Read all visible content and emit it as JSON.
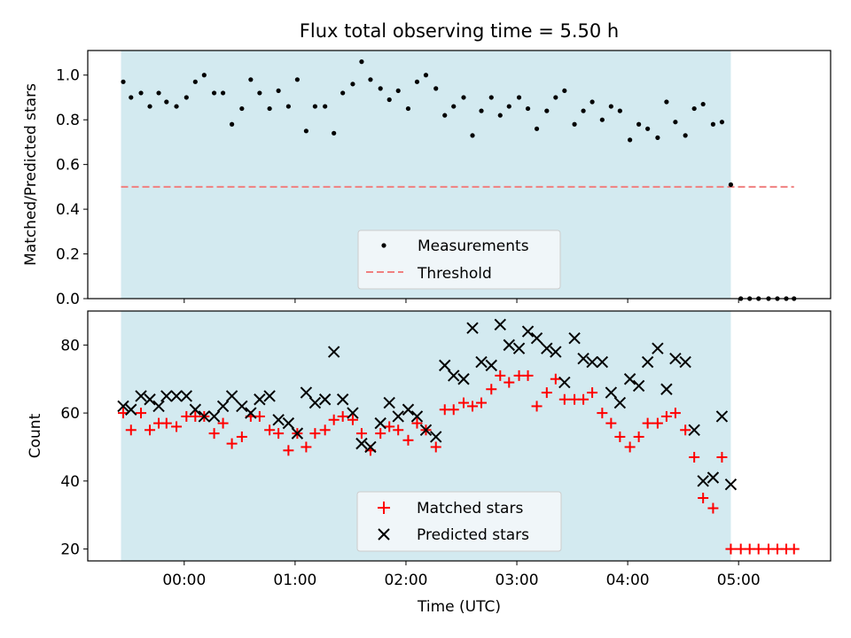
{
  "chart_data": [
    {
      "type": "scatter",
      "title": "Flux total observing time = 5.50 h",
      "xlabel": "",
      "ylabel": "Matched/Predicted stars",
      "xlim": [
        -0.87,
        5.83
      ],
      "ylim": [
        0.0,
        1.11
      ],
      "yticks": [
        "0.0",
        "0.2",
        "0.4",
        "0.6",
        "0.8",
        "1.0"
      ],
      "shaded_region": [
        -0.57,
        4.93
      ],
      "shade_color": "#d3eaf0",
      "threshold": {
        "label": "Threshold",
        "y": 0.5,
        "x_range": [
          -0.57,
          5.5
        ],
        "color": "#f08080"
      },
      "series": [
        {
          "name": "Measurements",
          "marker": "dot",
          "color": "#000000",
          "x": [
            -0.55,
            -0.48,
            -0.39,
            -0.31,
            -0.23,
            -0.16,
            -0.07,
            0.02,
            0.1,
            0.18,
            0.27,
            0.35,
            0.43,
            0.52,
            0.6,
            0.68,
            0.77,
            0.85,
            0.94,
            1.02,
            1.1,
            1.18,
            1.27,
            1.35,
            1.43,
            1.52,
            1.6,
            1.68,
            1.77,
            1.85,
            1.93,
            2.02,
            2.1,
            2.18,
            2.27,
            2.35,
            2.43,
            2.52,
            2.6,
            2.68,
            2.77,
            2.85,
            2.93,
            3.02,
            3.1,
            3.18,
            3.27,
            3.35,
            3.43,
            3.52,
            3.6,
            3.68,
            3.77,
            3.85,
            3.93,
            4.02,
            4.1,
            4.18,
            4.27,
            4.35,
            4.43,
            4.52,
            4.6,
            4.68,
            4.77,
            4.85,
            4.93,
            5.02,
            5.1,
            5.18,
            5.27,
            5.35,
            5.43,
            5.5
          ],
          "y": [
            0.97,
            0.9,
            0.92,
            0.86,
            0.92,
            0.88,
            0.86,
            0.9,
            0.97,
            1.0,
            0.92,
            0.92,
            0.78,
            0.85,
            0.98,
            0.92,
            0.85,
            0.93,
            0.86,
            0.98,
            0.75,
            0.86,
            0.86,
            0.74,
            0.92,
            0.96,
            1.06,
            0.98,
            0.94,
            0.89,
            0.93,
            0.85,
            0.97,
            1.0,
            0.94,
            0.82,
            0.86,
            0.9,
            0.73,
            0.84,
            0.9,
            0.82,
            0.86,
            0.9,
            0.85,
            0.76,
            0.84,
            0.9,
            0.93,
            0.78,
            0.84,
            0.88,
            0.8,
            0.86,
            0.84,
            0.71,
            0.78,
            0.76,
            0.72,
            0.88,
            0.79,
            0.73,
            0.85,
            0.87,
            0.78,
            0.79,
            0.51,
            0.0,
            0.0,
            0.0,
            0.0,
            0.0,
            0.0,
            0.0
          ]
        }
      ],
      "legend": {
        "position": "lower-center",
        "entries": [
          "Measurements",
          "Threshold"
        ]
      }
    },
    {
      "type": "scatter",
      "title": "",
      "xlabel": "Time (UTC)",
      "ylabel": "Count",
      "xlim": [
        -0.87,
        5.83
      ],
      "ylim": [
        16.5,
        90
      ],
      "xticks": [
        "00:00",
        "01:00",
        "02:00",
        "03:00",
        "04:00",
        "05:00"
      ],
      "xtick_values": [
        0,
        1,
        2,
        3,
        4,
        5
      ],
      "yticks": [
        "20",
        "40",
        "60",
        "80"
      ],
      "ytick_values": [
        20,
        40,
        60,
        80
      ],
      "shaded_region": [
        -0.57,
        4.93
      ],
      "shade_color": "#d3eaf0",
      "series": [
        {
          "name": "Matched stars",
          "marker": "plus",
          "color": "#ff0000",
          "x": [
            -0.55,
            -0.48,
            -0.39,
            -0.31,
            -0.23,
            -0.16,
            -0.07,
            0.02,
            0.1,
            0.18,
            0.27,
            0.35,
            0.43,
            0.52,
            0.6,
            0.68,
            0.77,
            0.85,
            0.94,
            1.02,
            1.1,
            1.18,
            1.27,
            1.35,
            1.43,
            1.52,
            1.6,
            1.68,
            1.77,
            1.85,
            1.93,
            2.02,
            2.1,
            2.18,
            2.27,
            2.35,
            2.43,
            2.52,
            2.6,
            2.68,
            2.77,
            2.85,
            2.93,
            3.02,
            3.1,
            3.18,
            3.27,
            3.35,
            3.43,
            3.52,
            3.6,
            3.68,
            3.77,
            3.85,
            3.93,
            4.02,
            4.1,
            4.18,
            4.27,
            4.35,
            4.43,
            4.52,
            4.6,
            4.68,
            4.77,
            4.85,
            4.93,
            5.02,
            5.1,
            5.18,
            5.27,
            5.35,
            5.43,
            5.5
          ],
          "y": [
            60,
            55,
            60,
            55,
            57,
            57,
            56,
            59,
            59,
            59,
            54,
            57,
            51,
            53,
            59,
            59,
            55,
            54,
            49,
            54,
            50,
            54,
            55,
            58,
            59,
            58,
            54,
            49,
            54,
            56,
            55,
            52,
            57,
            55,
            50,
            61,
            61,
            63,
            62,
            63,
            67,
            71,
            69,
            71,
            71,
            62,
            66,
            70,
            64,
            64,
            64,
            66,
            60,
            57,
            53,
            50,
            53,
            57,
            57,
            59,
            60,
            55,
            47,
            35,
            32,
            47,
            20,
            20,
            20,
            20,
            20,
            20,
            20,
            20
          ]
        },
        {
          "name": "Predicted stars",
          "marker": "x",
          "color": "#000000",
          "x": [
            -0.55,
            -0.48,
            -0.39,
            -0.31,
            -0.23,
            -0.16,
            -0.07,
            0.02,
            0.1,
            0.18,
            0.27,
            0.35,
            0.43,
            0.52,
            0.6,
            0.68,
            0.77,
            0.85,
            0.94,
            1.02,
            1.1,
            1.18,
            1.27,
            1.35,
            1.43,
            1.52,
            1.6,
            1.68,
            1.77,
            1.85,
            1.93,
            2.02,
            2.1,
            2.18,
            2.27,
            2.35,
            2.43,
            2.52,
            2.6,
            2.68,
            2.77,
            2.85,
            2.93,
            3.02,
            3.1,
            3.18,
            3.27,
            3.35,
            3.43,
            3.52,
            3.6,
            3.68,
            3.77,
            3.85,
            3.93,
            4.02,
            4.1,
            4.18,
            4.27,
            4.35,
            4.43,
            4.52,
            4.6,
            4.68,
            4.77,
            4.85,
            4.93
          ],
          "y": [
            62,
            61,
            65,
            64,
            62,
            65,
            65,
            65,
            61,
            59,
            59,
            62,
            65,
            62,
            60,
            64,
            65,
            58,
            57,
            54,
            66,
            63,
            64,
            78,
            64,
            60,
            51,
            50,
            57,
            63,
            59,
            61,
            59,
            55,
            53,
            74,
            71,
            70,
            85,
            75,
            74,
            86,
            80,
            79,
            84,
            82,
            79,
            78,
            69,
            82,
            76,
            75,
            75,
            66,
            63,
            70,
            68,
            75,
            79,
            67,
            76,
            75,
            55,
            40,
            41,
            59,
            39
          ]
        }
      ],
      "legend": {
        "position": "lower-center",
        "entries": [
          "Matched stars",
          "Predicted stars"
        ]
      }
    }
  ]
}
